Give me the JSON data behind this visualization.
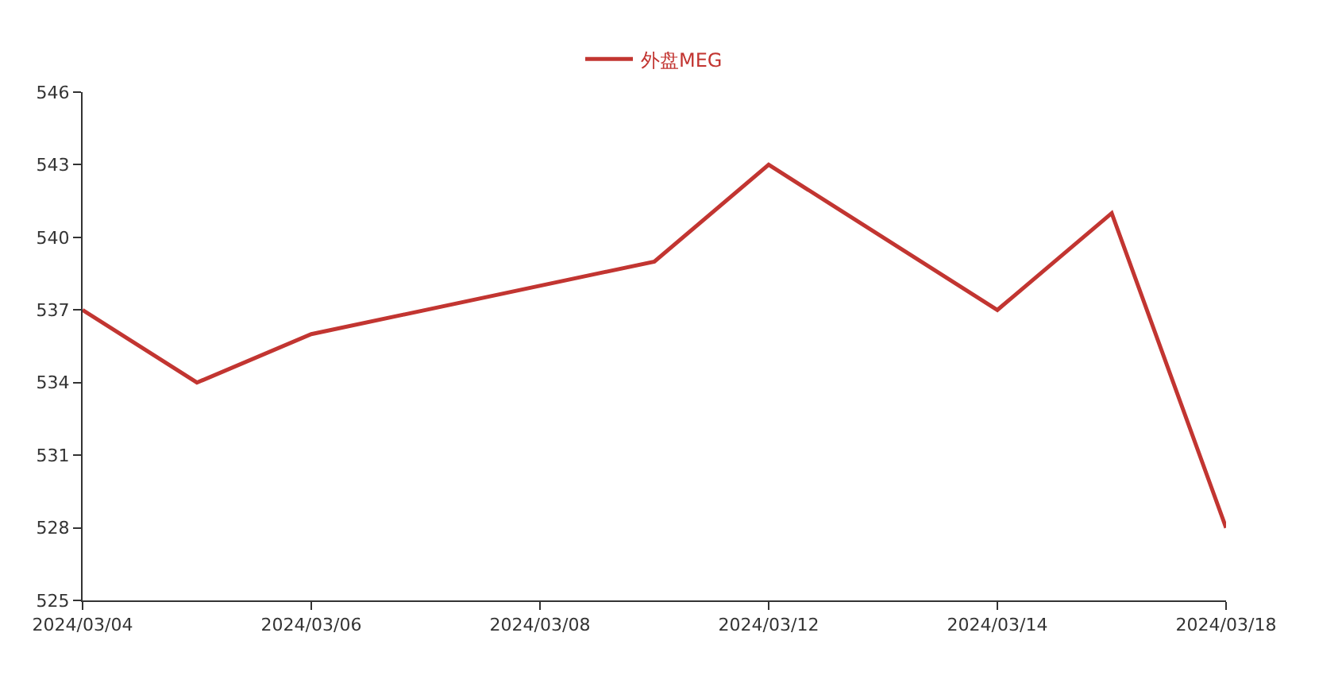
{
  "chart_data": {
    "type": "line",
    "categories": [
      "2024/03/04",
      null,
      "2024/03/06",
      null,
      "2024/03/08",
      null,
      "2024/03/12",
      null,
      "2024/03/14",
      null,
      "2024/03/18"
    ],
    "series": [
      {
        "name": "外盘MEG",
        "color": "#c23531",
        "values": [
          537,
          534,
          536,
          null,
          null,
          539,
          543,
          null,
          537,
          541,
          528
        ]
      }
    ],
    "ylim": [
      525,
      546
    ],
    "yticks": [
      525,
      528,
      531,
      534,
      537,
      540,
      543,
      546
    ],
    "grid": false,
    "legend": "top",
    "line_style": "solid"
  }
}
